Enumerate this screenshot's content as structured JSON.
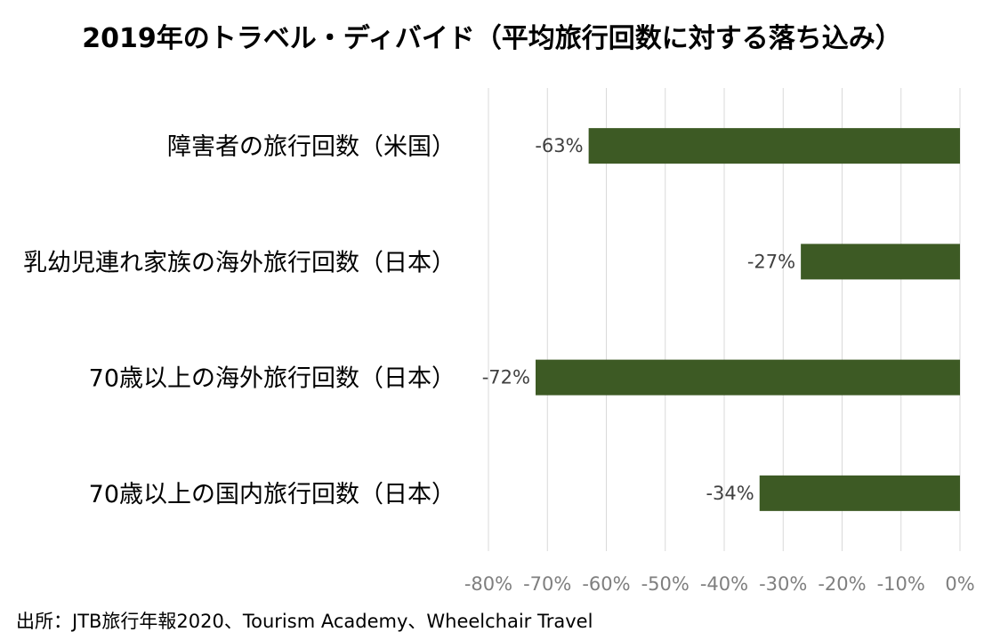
{
  "chart_data": {
    "type": "bar",
    "orientation": "horizontal",
    "title": "2019年のトラベル・ディバイド（平均旅行回数に対する落ち込み）",
    "categories": [
      "障害者の旅行回数（米国）",
      "乳幼児連れ家族の海外旅行回数（日本）",
      "70歳以上の海外旅行回数（日本）",
      "70歳以上の国内旅行回数（日本）"
    ],
    "values": [
      -63,
      -27,
      -72,
      -34
    ],
    "data_labels": [
      "-63%",
      "-27%",
      "-72%",
      "-34%"
    ],
    "xlim": [
      -80,
      0
    ],
    "x_ticks": [
      -80,
      -70,
      -60,
      -50,
      -40,
      -30,
      -20,
      -10,
      0
    ],
    "x_tick_labels": [
      "-80%",
      "-70%",
      "-60%",
      "-50%",
      "-40%",
      "-30%",
      "-20%",
      "-10%",
      "0%"
    ],
    "grid": "vertical",
    "legend": "none",
    "bar_color": "#3d5a24",
    "grid_color": "#d9d9d9",
    "text_color": "#000000",
    "label_color": "#404040",
    "tick_color": "#7f7f7f"
  },
  "source": "出所：JTB旅行年報2020、Tourism Academy、Wheelchair Travel"
}
